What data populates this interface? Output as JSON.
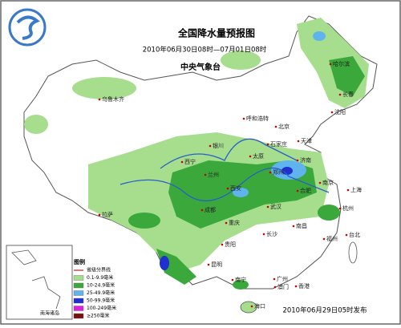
{
  "header": {
    "title": "全国降水量预报图",
    "period": "2010年06月30日08时—07月01日08时",
    "issuer": "中央气象台"
  },
  "footer": {
    "release": "2010年06月29日05时发布"
  },
  "cities": [
    "哈尔滨",
    "长春",
    "沈阳",
    "呼和浩特",
    "北京",
    "天津",
    "石家庄",
    "太原",
    "济南",
    "银川",
    "西宁",
    "兰州",
    "西安",
    "郑州",
    "合肥",
    "南京",
    "上海",
    "杭州",
    "武汉",
    "成都",
    "重庆",
    "长沙",
    "南昌",
    "福州",
    "贵阳",
    "昆明",
    "南宁",
    "广州",
    "香港",
    "澳门",
    "海口",
    "台北",
    "乌鲁木齐",
    "拉萨"
  ],
  "inset": {
    "label": "南海诸岛"
  },
  "legend": {
    "title": "图例",
    "items": [
      {
        "label": "省级分界线",
        "color": "#c0504d"
      },
      {
        "label": "0.1-9.9毫米",
        "color": "#a6de8e"
      },
      {
        "label": "10-24.9毫米",
        "color": "#3ba83b"
      },
      {
        "label": "25-49.9毫米",
        "color": "#5fb4ee"
      },
      {
        "label": "50-99.9毫米",
        "color": "#1f2fd0"
      },
      {
        "label": "100-249毫米",
        "color": "#e020e0"
      },
      {
        "label": "≥250毫米",
        "color": "#7a1010"
      }
    ]
  }
}
